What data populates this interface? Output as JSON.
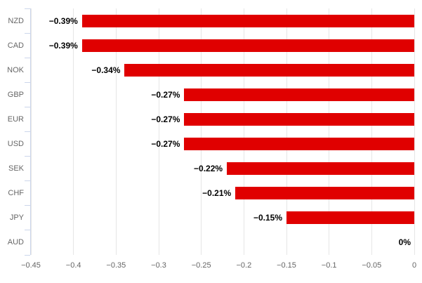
{
  "chart_data": {
    "type": "bar",
    "orientation": "horizontal",
    "title": "",
    "xlabel": "",
    "ylabel": "",
    "legend": false,
    "grid": true,
    "categories": [
      "NZD",
      "CAD",
      "NOK",
      "GBP",
      "EUR",
      "USD",
      "SEK",
      "CHF",
      "JPY",
      "AUD"
    ],
    "values": [
      -0.39,
      -0.39,
      -0.34,
      -0.27,
      -0.27,
      -0.27,
      -0.22,
      -0.21,
      -0.15,
      0
    ],
    "data_labels": [
      "−0.39%",
      "−0.39%",
      "−0.34%",
      "−0.27%",
      "−0.27%",
      "−0.27%",
      "−0.22%",
      "−0.21%",
      "−0.15%",
      "0%"
    ],
    "x_ticks": [
      -0.45,
      -0.4,
      -0.35,
      -0.3,
      -0.25,
      -0.2,
      -0.15,
      -0.1,
      -0.05,
      0
    ],
    "x_tick_labels": [
      "−0.45",
      "−0.4",
      "−0.35",
      "−0.3",
      "−0.25",
      "−0.2",
      "−0.15",
      "−0.1",
      "−0.05",
      "0"
    ],
    "xlim": [
      -0.45,
      0
    ],
    "colors": {
      "bar": "#e00000",
      "grid": "#e6e6e6",
      "axis_line": "#ccd6eb",
      "axis_label": "#666666",
      "data_label": "#000000",
      "background": "#ffffff"
    }
  }
}
